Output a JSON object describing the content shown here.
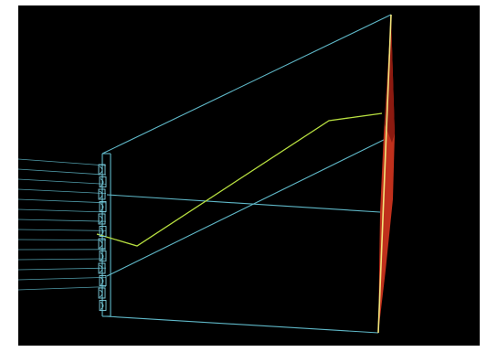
{
  "scene": {
    "background_color": "#000000",
    "page_color": "#ffffff",
    "wireframe_color": "#5fb8c8",
    "wire_bundle_color": "#7fd0e0",
    "focus_line_color": "#b8e040",
    "reflector_color": "#c0301c",
    "reflector_edge_color": "#f2e37a",
    "input_ray_count": 14,
    "element_count": 12
  }
}
